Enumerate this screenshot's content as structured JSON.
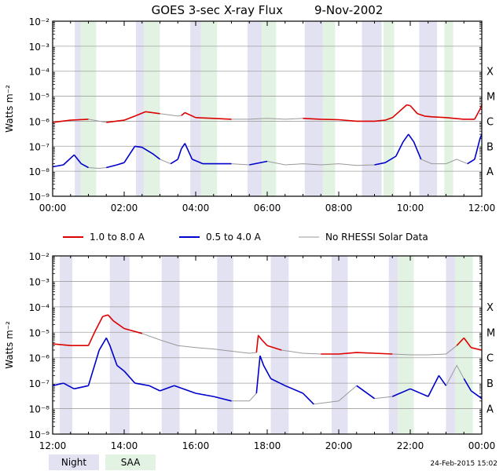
{
  "title": "GOES 3-sec X-ray Flux",
  "date": "9-Nov-2002",
  "footer_timestamp": "24-Feb-2015 15:02",
  "legend": [
    {
      "label": "1.0 to 8.0 A",
      "color": "#dd0000"
    },
    {
      "label": "0.5 to 4.0 A",
      "color": "#0000cc"
    },
    {
      "label": "No RHESSI Solar Data",
      "color": "#999999"
    }
  ],
  "bottom_legend": [
    {
      "label": "Night",
      "color": "#e2e2f2"
    },
    {
      "label": "SAA",
      "color": "#e3f3e3"
    }
  ],
  "chart_data": [
    {
      "type": "line",
      "ylabel": "Watts m⁻²",
      "yscale": "log",
      "ylim": [
        1e-09,
        0.01
      ],
      "xlim": [
        0,
        12
      ],
      "y_ticks": [
        "10⁻⁹",
        "10⁻⁸",
        "10⁻⁷",
        "10⁻⁶",
        "10⁻⁵",
        "10⁻⁴",
        "10⁻³",
        "10⁻²"
      ],
      "x_ticks": [
        "00:00",
        "02:00",
        "04:00",
        "06:00",
        "08:00",
        "10:00",
        "12:00"
      ],
      "flare_classes": [
        {
          "label": "A",
          "level": 1e-08
        },
        {
          "label": "B",
          "level": 1e-07
        },
        {
          "label": "C",
          "level": 1e-06
        },
        {
          "label": "M",
          "level": 1e-05
        },
        {
          "label": "X",
          "level": 0.0001
        }
      ],
      "night_bands": [
        [
          0.62,
          0.92
        ],
        [
          2.33,
          2.55
        ],
        [
          3.85,
          4.15
        ],
        [
          5.45,
          5.85
        ],
        [
          7.05,
          7.55
        ],
        [
          8.65,
          9.2
        ],
        [
          10.25,
          10.75
        ]
      ],
      "saa_bands": [
        [
          0.78,
          1.22
        ],
        [
          2.55,
          3.0
        ],
        [
          4.15,
          4.6
        ],
        [
          5.85,
          6.25
        ],
        [
          7.55,
          7.9
        ],
        [
          9.25,
          9.55
        ],
        [
          10.95,
          11.2
        ]
      ],
      "series": [
        {
          "color": "#dd0000",
          "gaps": [
            [
              0.9,
              1.65
            ],
            [
              3.0,
              3.6
            ],
            [
              5.0,
              7.3
            ]
          ],
          "x": [
            0,
            0.5,
            1.0,
            1.5,
            2.0,
            2.3,
            2.6,
            3.0,
            3.5,
            3.6,
            3.7,
            4.0,
            4.5,
            5.0,
            5.5,
            6.0,
            6.5,
            7.0,
            7.5,
            8.0,
            8.5,
            9.0,
            9.3,
            9.5,
            9.7,
            9.9,
            10.0,
            10.2,
            10.4,
            10.6,
            11.0,
            11.5,
            11.8,
            11.95,
            12.0
          ],
          "y": [
            9e-07,
            1.1e-06,
            1.2e-06,
            9e-07,
            1.1e-06,
            1.6e-06,
            2.4e-06,
            2e-06,
            1.6e-06,
            1.7e-06,
            2.2e-06,
            1.4e-06,
            1.3e-06,
            1.2e-06,
            1.2e-06,
            1.3e-06,
            1.2e-06,
            1.3e-06,
            1.2e-06,
            1.15e-06,
            1e-06,
            1e-06,
            1.1e-06,
            1.4e-06,
            2.5e-06,
            4.5e-06,
            4.2e-06,
            2e-06,
            1.6e-06,
            1.5e-06,
            1.4e-06,
            1.2e-06,
            1.2e-06,
            3e-06,
            4.5e-06
          ]
        },
        {
          "color": "#0000cc",
          "gaps": [
            [
              0.9,
              1.6
            ],
            [
              2.95,
              3.45
            ],
            [
              4.7,
              5.75
            ],
            [
              5.95,
              9.15
            ],
            [
              10.3,
              11.75
            ]
          ],
          "x": [
            0,
            0.3,
            0.6,
            0.8,
            1.0,
            1.3,
            1.5,
            1.8,
            2.0,
            2.3,
            2.5,
            2.8,
            3.0,
            3.3,
            3.5,
            3.6,
            3.7,
            3.9,
            4.2,
            4.5,
            5.0,
            5.5,
            6.0,
            6.5,
            7.0,
            7.5,
            8.0,
            8.5,
            9.0,
            9.3,
            9.6,
            9.8,
            9.95,
            10.1,
            10.3,
            10.6,
            11.0,
            11.3,
            11.6,
            11.8,
            11.95,
            12.0
          ],
          "y": [
            1.5e-08,
            1.8e-08,
            4.5e-08,
            2e-08,
            1.4e-08,
            1.3e-08,
            1.4e-08,
            1.8e-08,
            2.2e-08,
            1e-07,
            9e-08,
            5e-08,
            3e-08,
            2e-08,
            3e-08,
            8e-08,
            1.3e-07,
            3e-08,
            2e-08,
            2e-08,
            2e-08,
            1.8e-08,
            2.5e-08,
            1.8e-08,
            2e-08,
            1.8e-08,
            2e-08,
            1.7e-08,
            1.8e-08,
            2.2e-08,
            4e-08,
            1.5e-07,
            3e-07,
            1.5e-07,
            3e-08,
            2e-08,
            2e-08,
            3e-08,
            2e-08,
            3e-08,
            2e-07,
            3e-07
          ]
        }
      ]
    },
    {
      "type": "line",
      "ylabel": "Watts m⁻²",
      "yscale": "log",
      "ylim": [
        1e-09,
        0.01
      ],
      "xlim": [
        12,
        24
      ],
      "y_ticks": [
        "10⁻⁹",
        "10⁻⁸",
        "10⁻⁷",
        "10⁻⁶",
        "10⁻⁵",
        "10⁻⁴",
        "10⁻³",
        "10⁻²"
      ],
      "x_ticks": [
        "12:00",
        "14:00",
        "16:00",
        "18:00",
        "20:00",
        "22:00",
        "00:00"
      ],
      "flare_classes": [
        {
          "label": "A",
          "level": 1e-08
        },
        {
          "label": "B",
          "level": 1e-07
        },
        {
          "label": "C",
          "level": 1e-06
        },
        {
          "label": "M",
          "level": 1e-05
        },
        {
          "label": "X",
          "level": 0.0001
        }
      ],
      "night_bands": [
        [
          12.2,
          12.55
        ],
        [
          13.6,
          14.15
        ],
        [
          15.05,
          15.55
        ],
        [
          16.6,
          17.05
        ],
        [
          18.1,
          18.6
        ],
        [
          19.8,
          20.25
        ],
        [
          21.4,
          21.65
        ],
        [
          23.0,
          23.25
        ]
      ],
      "saa_bands": [
        [
          21.65,
          22.1
        ],
        [
          23.25,
          23.75
        ]
      ],
      "series": [
        {
          "color": "#dd0000",
          "gaps": [
            [
              14.3,
              16.0
            ],
            [
              16.0,
              17.7
            ],
            [
              18.4,
              19.8
            ],
            [
              21.2,
              23.3
            ]
          ],
          "x": [
            12,
            12.5,
            13.0,
            13.2,
            13.4,
            13.55,
            13.7,
            14.0,
            14.5,
            15.0,
            15.5,
            16.0,
            16.5,
            17.0,
            17.5,
            17.7,
            17.75,
            17.85,
            18.0,
            18.4,
            19.0,
            19.5,
            20.0,
            20.5,
            21.0,
            21.5,
            22.0,
            22.5,
            23.0,
            23.3,
            23.5,
            23.7,
            24.0
          ],
          "y": [
            3.5e-06,
            3e-06,
            3e-06,
            1.2e-05,
            4.2e-05,
            4.8e-05,
            2.8e-05,
            1.4e-05,
            9e-06,
            5e-06,
            3e-06,
            2.5e-06,
            2.2e-06,
            1.8e-06,
            1.5e-06,
            1.6e-06,
            7.5e-06,
            5e-06,
            3e-06,
            2e-06,
            1.5e-06,
            1.4e-06,
            1.4e-06,
            1.6e-06,
            1.5e-06,
            1.4e-06,
            1.3e-06,
            1.3e-06,
            1.4e-06,
            3e-06,
            6e-06,
            2.5e-06,
            2e-06
          ]
        },
        {
          "color": "#0000cc",
          "gaps": [
            [
              15.0,
              15.35
            ],
            [
              16.7,
              17.7
            ],
            [
              19.3,
              20.5
            ],
            [
              21.0,
              21.5
            ],
            [
              21.8,
              22.4
            ],
            [
              23.0,
              23.6
            ]
          ],
          "x": [
            12,
            12.3,
            12.6,
            13.0,
            13.3,
            13.5,
            13.6,
            13.8,
            14.0,
            14.3,
            14.7,
            15.0,
            15.4,
            16.0,
            16.5,
            17.0,
            17.5,
            17.7,
            17.8,
            17.9,
            18.1,
            18.5,
            19.0,
            19.3,
            20.0,
            20.5,
            21.0,
            21.5,
            22.0,
            22.5,
            22.8,
            23.0,
            23.3,
            23.5,
            23.7,
            24.0
          ],
          "y": [
            8e-08,
            1e-07,
            6e-08,
            8e-08,
            2e-06,
            6e-06,
            3e-06,
            5e-07,
            3e-07,
            1e-07,
            8e-08,
            5e-08,
            8e-08,
            4e-08,
            3e-08,
            2e-08,
            2e-08,
            4e-08,
            1.2e-06,
            5e-07,
            1.5e-07,
            8e-08,
            4e-08,
            1.5e-08,
            2e-08,
            8e-08,
            2.5e-08,
            3e-08,
            6e-08,
            3e-08,
            2e-07,
            8e-08,
            5e-07,
            1.5e-07,
            5e-08,
            2.5e-08
          ]
        }
      ]
    }
  ]
}
